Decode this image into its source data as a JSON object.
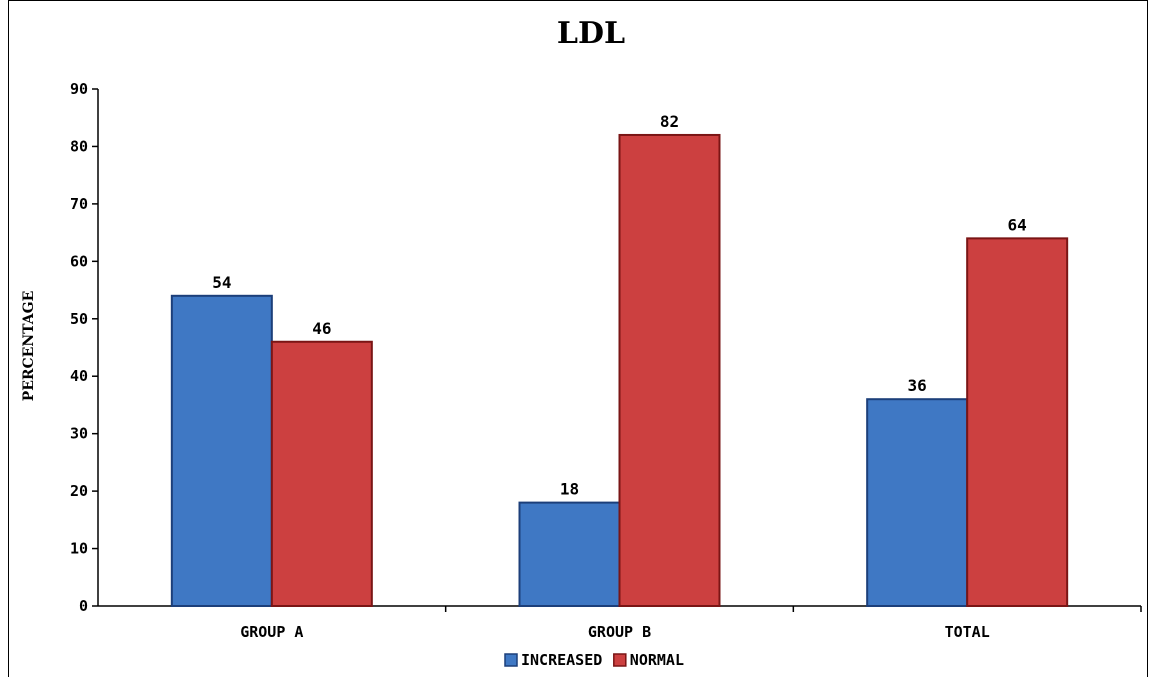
{
  "chart_data": {
    "type": "bar",
    "title": "LDL",
    "xlabel": "",
    "ylabel": "PERCENTAGE",
    "categories": [
      "GROUP A",
      "GROUP B",
      "TOTAL"
    ],
    "series": [
      {
        "name": "INCREASED",
        "values": [
          54,
          18,
          36
        ],
        "color": "#3f78c4",
        "stroke": "#1c3f7a"
      },
      {
        "name": "NORMAL",
        "values": [
          46,
          82,
          64
        ],
        "color": "#cc4040",
        "stroke": "#7a1515"
      }
    ],
    "ylim": [
      0,
      90
    ],
    "yticks": [
      0,
      10,
      20,
      30,
      40,
      50,
      60,
      70,
      80,
      90
    ],
    "grid": false,
    "legend": "bottom",
    "data_labels": true
  }
}
